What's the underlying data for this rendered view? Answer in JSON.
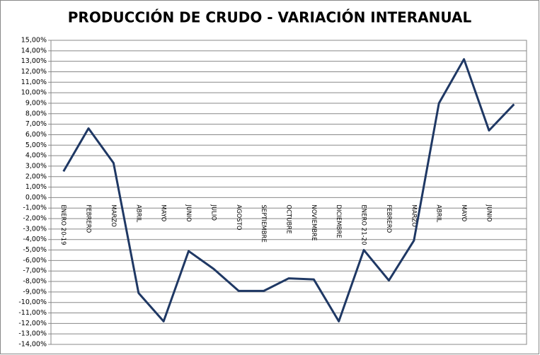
{
  "chart_data": {
    "type": "line",
    "title": "PRODUCCIÓN DE CRUDO - VARIACIÓN INTERANUAL",
    "categories": [
      "ENERO 20-19",
      "FEBRERO",
      "MARZO",
      "ABRIL",
      "MAYO",
      "JUNIO",
      "JULIO",
      "AGOSTO",
      "SEPTIEMBRE",
      "OCTUBRE",
      "NOVIEMBRE",
      "DICIEMBRE",
      "ENERO 21-20",
      "FEBRERO",
      "MARZO",
      "ABRIL",
      "MAYO",
      "JUNIO",
      null
    ],
    "series": [
      {
        "color": "#1f3864",
        "values": [
          2.5,
          6.6,
          3.3,
          -9.1,
          -11.8,
          -5.1,
          -6.8,
          -8.9,
          -8.9,
          -7.7,
          -7.8,
          -11.8,
          -5.0,
          -7.9,
          -4.1,
          9.0,
          13.2,
          6.4,
          8.9
        ]
      }
    ],
    "ylim": [
      -14,
      15
    ],
    "yticks": [
      {
        "value": -14,
        "label": "-14,00%"
      },
      {
        "value": -13,
        "label": "-13,00%"
      },
      {
        "value": -12,
        "label": "-12,00%"
      },
      {
        "value": -11,
        "label": "-11,00%"
      },
      {
        "value": -10,
        "label": "-10,00%"
      },
      {
        "value": -9,
        "label": "-9,00%"
      },
      {
        "value": -8,
        "label": "-8,00%"
      },
      {
        "value": -7,
        "label": "-7,00%"
      },
      {
        "value": -6,
        "label": "-6,00%"
      },
      {
        "value": -5,
        "label": "-5,00%"
      },
      {
        "value": -4,
        "label": "-4,00%"
      },
      {
        "value": -3,
        "label": "-3,00%"
      },
      {
        "value": -2,
        "label": "-2,00%"
      },
      {
        "value": -1,
        "label": "-1,00%"
      },
      {
        "value": 0,
        "label": "0,00%"
      },
      {
        "value": 1,
        "label": "1,00%"
      },
      {
        "value": 2,
        "label": "2,00%"
      },
      {
        "value": 3,
        "label": "3,00%"
      },
      {
        "value": 4,
        "label": "4,00%"
      },
      {
        "value": 5,
        "label": "5,00%"
      },
      {
        "value": 6,
        "label": "6,00%"
      },
      {
        "value": 7,
        "label": "7,00%"
      },
      {
        "value": 8,
        "label": "8,00%"
      },
      {
        "value": 9,
        "label": "9,00%"
      },
      {
        "value": 10,
        "label": "10,00%"
      },
      {
        "value": 11,
        "label": "11,00%"
      },
      {
        "value": 12,
        "label": "12,00%"
      },
      {
        "value": 13,
        "label": "13,00%"
      },
      {
        "value": 14,
        "label": "14,00%"
      },
      {
        "value": 15,
        "label": "15,00%"
      }
    ],
    "grid": true
  }
}
